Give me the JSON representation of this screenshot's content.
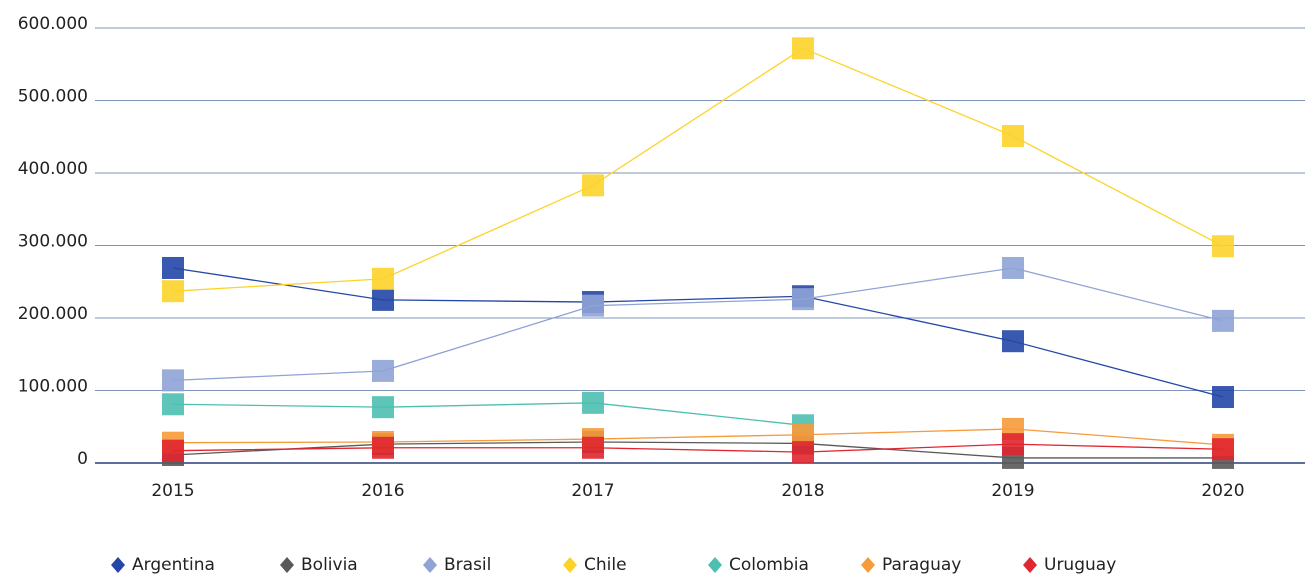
{
  "chart_data": {
    "type": "line",
    "categories": [
      "2015",
      "2016",
      "2017",
      "2018",
      "2019",
      "2020"
    ],
    "series": [
      {
        "name": "Argentina",
        "color": "#2446a6",
        "values": [
          269000,
          225000,
          222000,
          230000,
          168000,
          91000
        ]
      },
      {
        "name": "Bolivia",
        "color": "#595959",
        "values": [
          11000,
          26000,
          29000,
          27000,
          7000,
          7000
        ]
      },
      {
        "name": "Brasil",
        "color": "#8fa3d6",
        "values": [
          114000,
          127000,
          217000,
          226000,
          269000,
          196000
        ]
      },
      {
        "name": "Chile",
        "color": "#fdd32a",
        "values": [
          237000,
          254000,
          383000,
          572000,
          451000,
          299000
        ]
      },
      {
        "name": "Colombia",
        "color": "#4dbfb0",
        "values": [
          81000,
          77000,
          83000,
          52000,
          null,
          null
        ]
      },
      {
        "name": "Paraguay",
        "color": "#f79a3a",
        "values": [
          28000,
          29000,
          33000,
          39000,
          47000,
          25000
        ]
      },
      {
        "name": "Uruguay",
        "color": "#e0262f",
        "values": [
          17000,
          21000,
          21000,
          15000,
          26000,
          19000
        ]
      }
    ],
    "ylim": [
      0,
      600000
    ],
    "yticks": [
      0,
      {
        "value": 100000,
        "label": "100.000"
      },
      {
        "value": 200000,
        "label": "200.000"
      },
      {
        "value": 300000,
        "label": "300.000"
      },
      {
        "value": 400000,
        "label": "400.000"
      },
      {
        "value": 500000,
        "label": "500.000"
      },
      {
        "value": 600000,
        "label": "600.000"
      }
    ],
    "grid": true,
    "legend": "bottom"
  }
}
